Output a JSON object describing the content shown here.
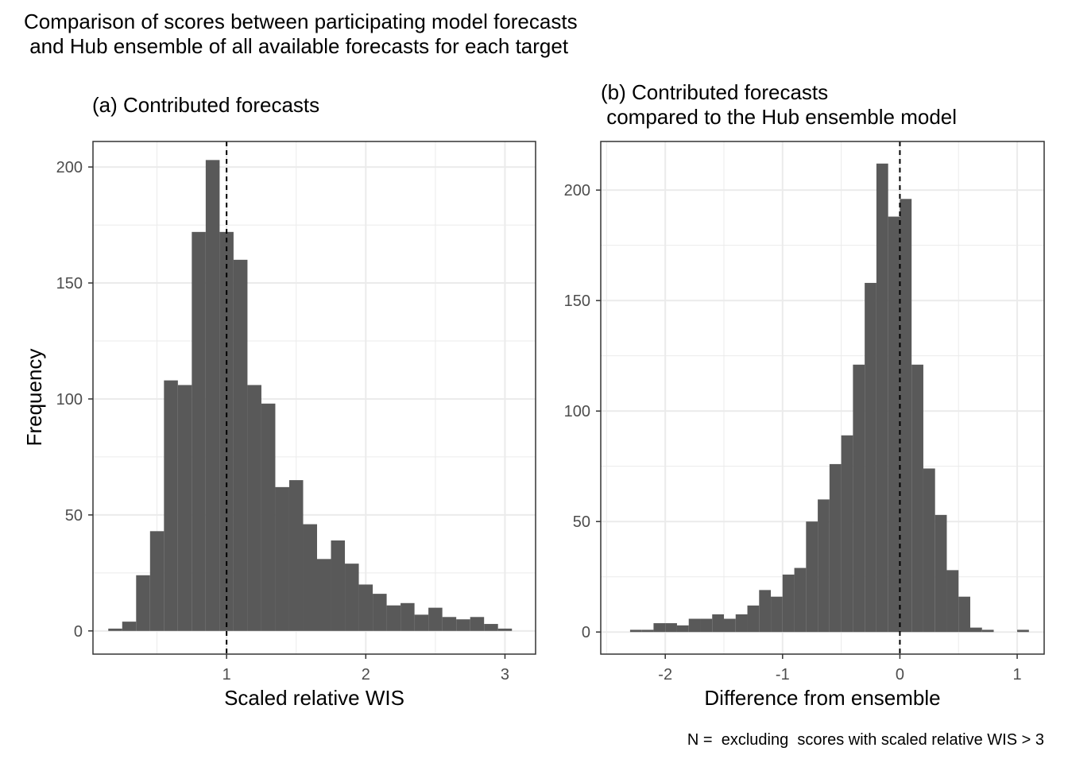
{
  "figure": {
    "title": "Comparison of scores between participating model forecasts\n and Hub ensemble of all available forecasts for each target",
    "caption": "N =  excluding  scores with scaled relative WIS > 3"
  },
  "colors": {
    "bar": "#595959",
    "grid": "#ebebeb",
    "panel_border": "#333333",
    "vline": "#000000"
  },
  "chart_data": [
    {
      "type": "bar",
      "title": "(a) Contributed forecasts",
      "xlabel": "Scaled relative WIS",
      "ylabel": "Frequency",
      "xlim": [
        0.04,
        3.22
      ],
      "ylim": [
        -10,
        211
      ],
      "xticks": [
        1,
        2,
        3
      ],
      "yticks": [
        0,
        50,
        100,
        150,
        200
      ],
      "vline": 1,
      "bin_width": 0.1,
      "x": [
        0.2,
        0.3,
        0.4,
        0.5,
        0.6,
        0.7,
        0.8,
        0.9,
        1.0,
        1.1,
        1.2,
        1.3,
        1.4,
        1.5,
        1.6,
        1.7,
        1.8,
        1.9,
        2.0,
        2.1,
        2.2,
        2.3,
        2.4,
        2.5,
        2.6,
        2.7,
        2.8,
        2.9,
        3.0
      ],
      "values": [
        1,
        4,
        24,
        43,
        108,
        106,
        172,
        203,
        172,
        160,
        106,
        98,
        62,
        65,
        46,
        31,
        39,
        29,
        20,
        16,
        11,
        12,
        7,
        10,
        6,
        5,
        6,
        3,
        1
      ]
    },
    {
      "type": "bar",
      "title": "(b) Contributed forecasts\n compared to the Hub ensemble model",
      "xlabel": "Difference from ensemble",
      "ylabel": "",
      "xlim": [
        -2.55,
        1.23
      ],
      "ylim": [
        -10,
        222
      ],
      "xticks": [
        -2,
        -1,
        0,
        1
      ],
      "yticks": [
        0,
        50,
        100,
        150,
        200
      ],
      "vline": 0,
      "bin_width": 0.1,
      "x": [
        -2.25,
        -2.15,
        -2.05,
        -1.95,
        -1.85,
        -1.75,
        -1.65,
        -1.55,
        -1.45,
        -1.35,
        -1.25,
        -1.15,
        -1.05,
        -0.95,
        -0.85,
        -0.75,
        -0.65,
        -0.55,
        -0.45,
        -0.35,
        -0.25,
        -0.15,
        -0.05,
        0.05,
        0.15,
        0.25,
        0.35,
        0.45,
        0.55,
        0.65,
        0.75,
        0.85,
        0.95,
        1.05
      ],
      "values": [
        1,
        1,
        4,
        4,
        3,
        6,
        6,
        8,
        6,
        8,
        12,
        19,
        16,
        26,
        29,
        50,
        60,
        76,
        89,
        121,
        158,
        212,
        188,
        196,
        121,
        74,
        53,
        28,
        16,
        2,
        1,
        0,
        0,
        1
      ]
    }
  ]
}
